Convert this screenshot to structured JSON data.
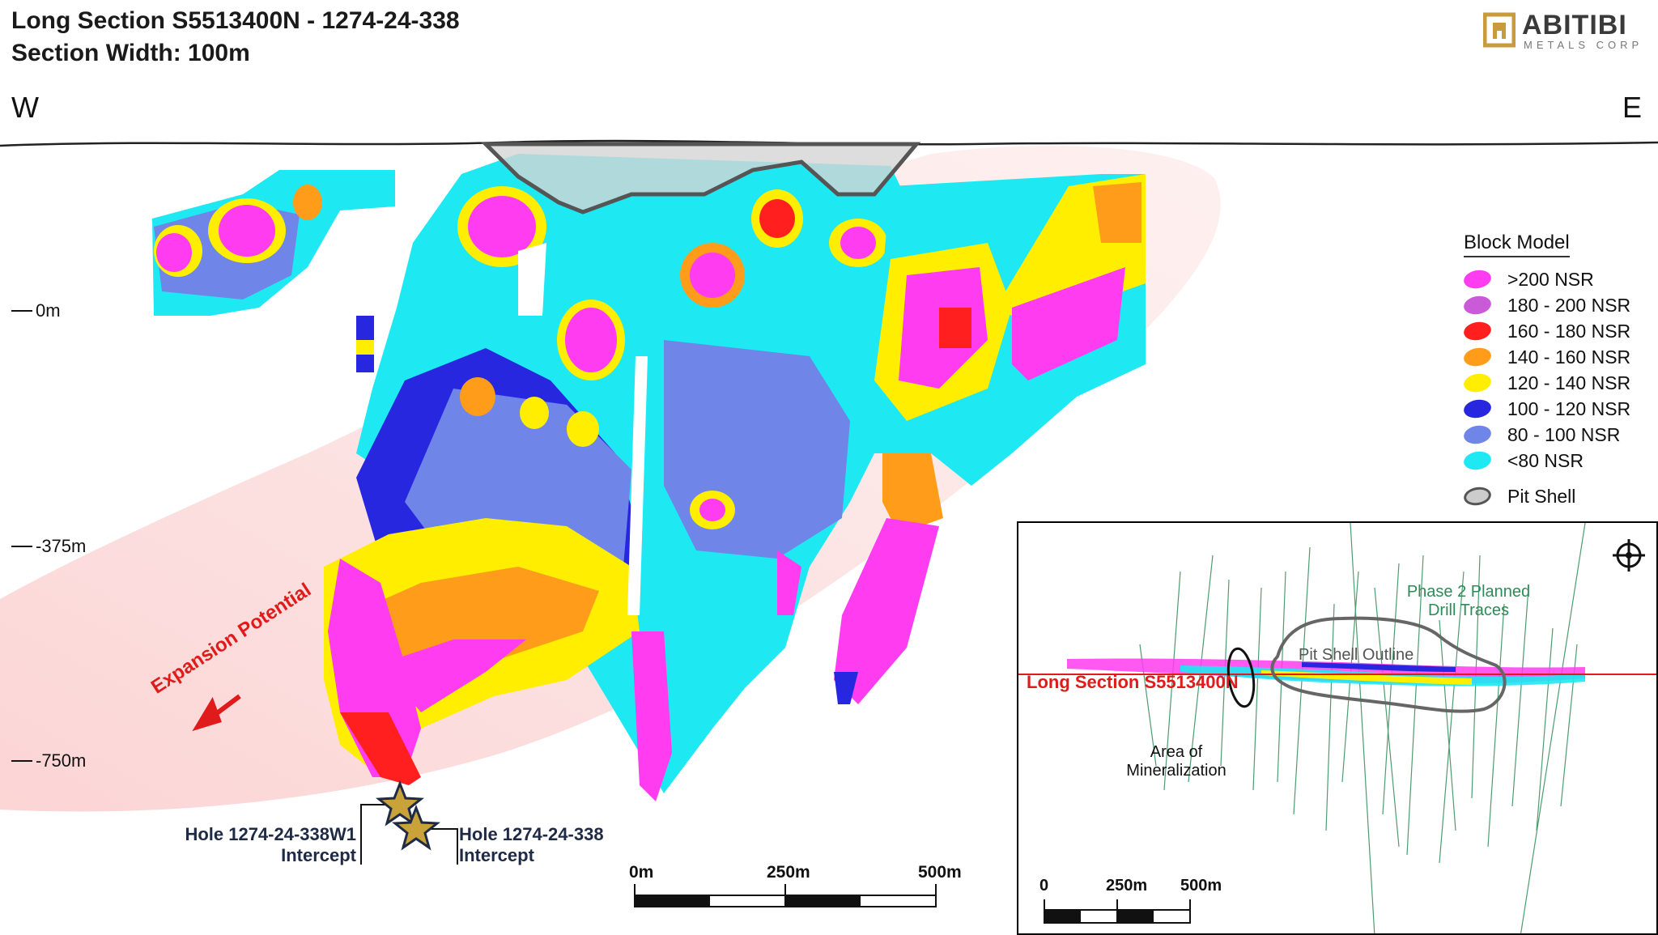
{
  "header": {
    "title_line1": "Long Section S5513400N - 1274-24-338",
    "title_line2": "Section Width: 100m"
  },
  "logo": {
    "name": "ABITIBI",
    "sub": "METALS CORP",
    "icon": "building-logo-icon",
    "color": "#c89b3c"
  },
  "directions": {
    "west": "W",
    "east": "E"
  },
  "depth_labels": [
    "0m",
    "-375m",
    "-750m"
  ],
  "legend": {
    "title": "Block Model",
    "items": [
      {
        "label": ">200 NSR",
        "color": "#ff3cf0"
      },
      {
        "label": "180 - 200 NSR",
        "color": "#c95bd8"
      },
      {
        "label": "160 - 180 NSR",
        "color": "#ff1f1f"
      },
      {
        "label": "140 - 160 NSR",
        "color": "#ff9d1a"
      },
      {
        "label": "120 - 140 NSR",
        "color": "#ffee00"
      },
      {
        "label": "100 - 120 NSR",
        "color": "#2727e0"
      },
      {
        "label": "80 - 100 NSR",
        "color": "#6f86e8"
      },
      {
        "label": "<80 NSR",
        "color": "#1ee8f2"
      },
      {
        "label": "Pit Shell",
        "color": "#cccccc"
      }
    ]
  },
  "annotations": {
    "expansion": "Expansion Potential",
    "hole1_line1": "Hole 1274-24-338W1",
    "hole1_line2": "Intercept",
    "hole2_line1": "Hole 1274-24-338",
    "hole2_line2": "Intercept"
  },
  "scale_bar": {
    "labels": [
      "0m",
      "250m",
      "500m"
    ]
  },
  "inset": {
    "phase2_line1": "Phase 2 Planned",
    "phase2_line2": "Drill Traces",
    "pit_outline": "Pit Shell Outline",
    "section": "Long Section S5513400N",
    "area_line1": "Area of",
    "area_line2": "Mineralization",
    "scale_labels": [
      "0",
      "250m",
      "500m"
    ],
    "compass": "crosshair-compass-icon"
  }
}
